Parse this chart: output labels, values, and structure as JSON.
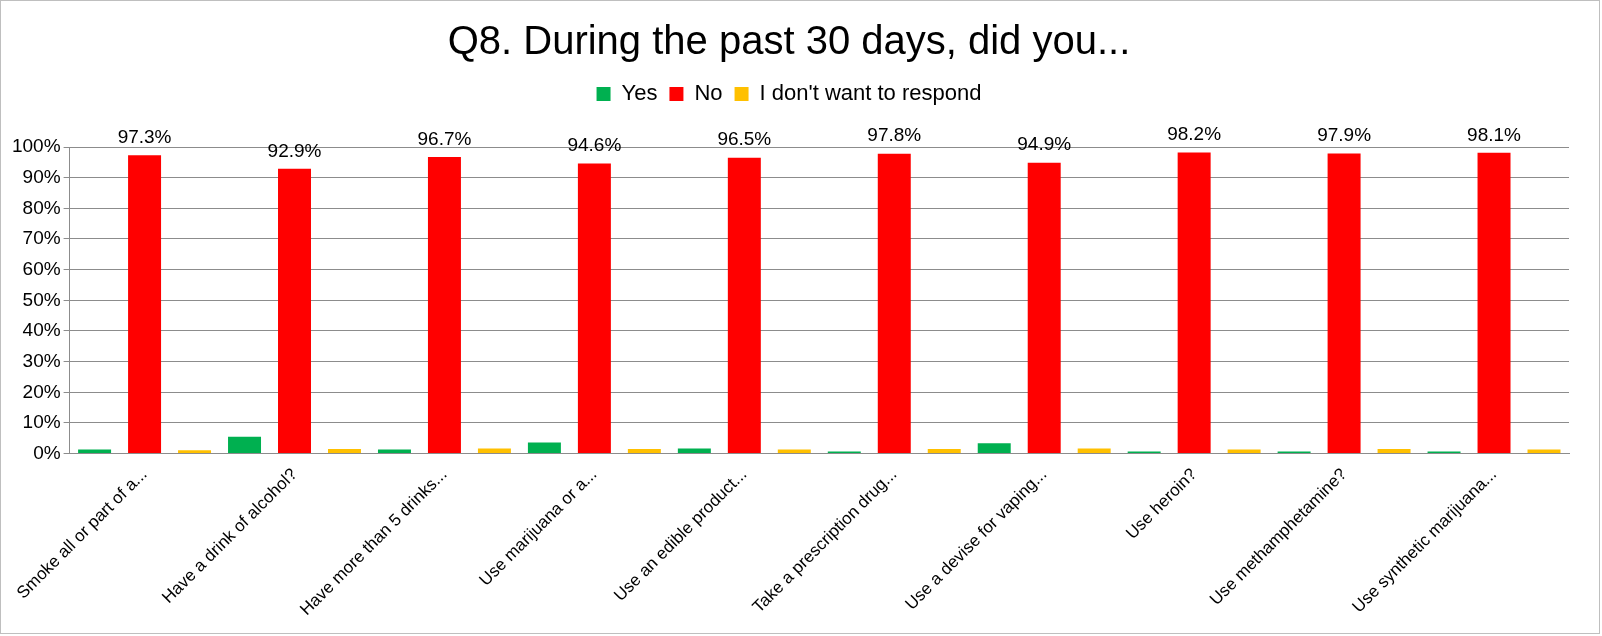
{
  "chart_data": {
    "type": "bar",
    "title": "Q8. During the past 30 days, did you...",
    "categories": [
      "Smoke all or part of a...",
      "Have a drink of alcohol?",
      "Have more than 5 drinks...",
      "Use marijuana or a...",
      "Use an edible product...",
      "Take a prescription drug...",
      "Use a devise for vaping...",
      "Use heroin?",
      "Use methamphetamine?",
      "Use synthetic marijuana..."
    ],
    "series": [
      {
        "name": "Yes",
        "color": "#00b050",
        "values": [
          1.3,
          5.5,
          1.3,
          3.6,
          1.7,
          0.4,
          3.4,
          0.2,
          0.2,
          0.2
        ]
      },
      {
        "name": "No",
        "color": "#ff0000",
        "values": [
          97.3,
          92.9,
          96.7,
          94.6,
          96.5,
          97.8,
          94.9,
          98.2,
          97.9,
          98.1
        ],
        "value_labels": [
          "97.3%",
          "92.9%",
          "96.7%",
          "94.6%",
          "96.5%",
          "97.8%",
          "94.9%",
          "98.2%",
          "97.9%",
          "98.1%"
        ]
      },
      {
        "name": "I don't want to respond",
        "color": "#ffc000",
        "values": [
          1.1,
          1.5,
          1.7,
          1.5,
          1.3,
          1.5,
          1.7,
          1.3,
          1.5,
          1.3
        ]
      }
    ],
    "ylim": [
      0,
      100
    ],
    "yticks": [
      {
        "value": 0,
        "label": "0%"
      },
      {
        "value": 10,
        "label": "10%"
      },
      {
        "value": 20,
        "label": "20%"
      },
      {
        "value": 30,
        "label": "30%"
      },
      {
        "value": 40,
        "label": "40%"
      },
      {
        "value": 50,
        "label": "50%"
      },
      {
        "value": 60,
        "label": "60%"
      },
      {
        "value": 70,
        "label": "70%"
      },
      {
        "value": 80,
        "label": "80%"
      },
      {
        "value": 90,
        "label": "90%"
      },
      {
        "value": 100,
        "label": "100%"
      }
    ],
    "grid": "y",
    "legend": "top"
  }
}
